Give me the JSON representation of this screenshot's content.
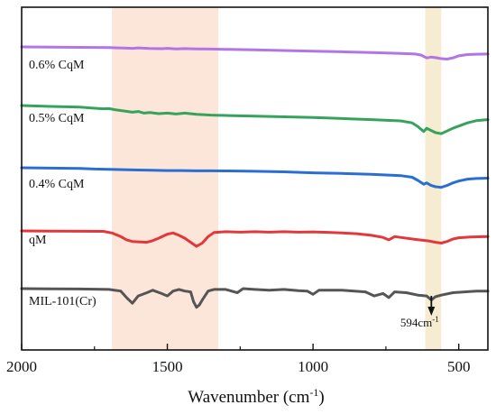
{
  "chart_data": {
    "type": "line",
    "xlabel": "Wavenumber (cm",
    "xlabel_sup": "-1",
    "xlabel_close": ")",
    "xlim": [
      2000,
      400
    ],
    "x_ticks": [
      2000,
      1500,
      1000,
      500
    ],
    "y_ticks_visible": false,
    "grid": false,
    "highlight_bands": [
      {
        "from": 1690,
        "to": 1325,
        "color": "#fbe6d9"
      },
      {
        "from": 615,
        "to": 560,
        "color": "#f5ecd2"
      }
    ],
    "annotation": {
      "text": "594cm",
      "sup": "-1",
      "x": 594
    },
    "series": [
      {
        "name": "0.6% CqM",
        "color": "#b175e6",
        "points": [
          [
            2000,
            0.0
          ],
          [
            1900,
            0.02
          ],
          [
            1800,
            0.05
          ],
          [
            1700,
            0.09
          ],
          [
            1650,
            0.14
          ],
          [
            1620,
            0.18
          ],
          [
            1600,
            0.12
          ],
          [
            1560,
            0.2
          ],
          [
            1520,
            0.22
          ],
          [
            1500,
            0.18
          ],
          [
            1470,
            0.24
          ],
          [
            1440,
            0.21
          ],
          [
            1400,
            0.24
          ],
          [
            1350,
            0.27
          ],
          [
            1300,
            0.3
          ],
          [
            1200,
            0.36
          ],
          [
            1100,
            0.44
          ],
          [
            1000,
            0.52
          ],
          [
            900,
            0.6
          ],
          [
            800,
            0.7
          ],
          [
            700,
            0.8
          ],
          [
            650,
            0.88
          ],
          [
            630,
            1.0
          ],
          [
            610,
            1.35
          ],
          [
            595,
            1.25
          ],
          [
            580,
            1.32
          ],
          [
            560,
            1.45
          ],
          [
            540,
            1.5
          ],
          [
            520,
            1.35
          ],
          [
            500,
            1.1
          ],
          [
            470,
            0.95
          ],
          [
            440,
            0.9
          ],
          [
            400,
            0.88
          ]
        ]
      },
      {
        "name": "0.5% CqM",
        "color": "#36a35c",
        "points": [
          [
            2000,
            0.0
          ],
          [
            1900,
            0.08
          ],
          [
            1800,
            0.15
          ],
          [
            1750,
            0.25
          ],
          [
            1720,
            0.3
          ],
          [
            1700,
            0.28
          ],
          [
            1680,
            0.38
          ],
          [
            1650,
            0.5
          ],
          [
            1620,
            0.62
          ],
          [
            1600,
            0.55
          ],
          [
            1580,
            0.7
          ],
          [
            1560,
            0.65
          ],
          [
            1530,
            0.75
          ],
          [
            1500,
            0.7
          ],
          [
            1470,
            0.78
          ],
          [
            1440,
            0.7
          ],
          [
            1400,
            0.82
          ],
          [
            1350,
            0.88
          ],
          [
            1300,
            0.92
          ],
          [
            1200,
            0.98
          ],
          [
            1100,
            1.04
          ],
          [
            1000,
            1.1
          ],
          [
            900,
            1.2
          ],
          [
            800,
            1.3
          ],
          [
            700,
            1.42
          ],
          [
            660,
            1.6
          ],
          [
            640,
            1.95
          ],
          [
            620,
            2.4
          ],
          [
            610,
            2.1
          ],
          [
            595,
            2.3
          ],
          [
            580,
            2.5
          ],
          [
            560,
            2.6
          ],
          [
            540,
            2.35
          ],
          [
            520,
            2.1
          ],
          [
            500,
            1.9
          ],
          [
            470,
            1.6
          ],
          [
            440,
            1.4
          ],
          [
            400,
            1.3
          ]
        ]
      },
      {
        "name": "0.4% CqM",
        "color": "#2a6ed4",
        "points": [
          [
            2000,
            0.0
          ],
          [
            1900,
            0.03
          ],
          [
            1800,
            0.05
          ],
          [
            1750,
            0.1
          ],
          [
            1700,
            0.12
          ],
          [
            1650,
            0.15
          ],
          [
            1600,
            0.18
          ],
          [
            1550,
            0.2
          ],
          [
            1500,
            0.22
          ],
          [
            1450,
            0.22
          ],
          [
            1400,
            0.24
          ],
          [
            1350,
            0.24
          ],
          [
            1300,
            0.25
          ],
          [
            1200,
            0.28
          ],
          [
            1100,
            0.32
          ],
          [
            1000,
            0.4
          ],
          [
            900,
            0.45
          ],
          [
            800,
            0.52
          ],
          [
            700,
            0.62
          ],
          [
            660,
            0.75
          ],
          [
            640,
            1.0
          ],
          [
            620,
            1.3
          ],
          [
            610,
            1.2
          ],
          [
            595,
            1.4
          ],
          [
            580,
            1.5
          ],
          [
            560,
            1.55
          ],
          [
            540,
            1.4
          ],
          [
            520,
            1.2
          ],
          [
            500,
            1.05
          ],
          [
            470,
            0.9
          ],
          [
            440,
            0.85
          ],
          [
            400,
            0.82
          ]
        ]
      },
      {
        "name": "qM",
        "color": "#e2383b",
        "points": [
          [
            2000,
            0.0
          ],
          [
            1900,
            0.02
          ],
          [
            1800,
            0.05
          ],
          [
            1720,
            0.06
          ],
          [
            1690,
            0.25
          ],
          [
            1660,
            0.7
          ],
          [
            1640,
            1.1
          ],
          [
            1620,
            1.3
          ],
          [
            1600,
            1.35
          ],
          [
            1570,
            1.4
          ],
          [
            1550,
            1.2
          ],
          [
            1530,
            0.9
          ],
          [
            1500,
            0.4
          ],
          [
            1480,
            0.25
          ],
          [
            1460,
            0.55
          ],
          [
            1440,
            0.9
          ],
          [
            1420,
            1.4
          ],
          [
            1400,
            1.9
          ],
          [
            1380,
            1.5
          ],
          [
            1360,
            0.7
          ],
          [
            1340,
            0.2
          ],
          [
            1300,
            0.1
          ],
          [
            1250,
            0.15
          ],
          [
            1200,
            0.1
          ],
          [
            1150,
            0.15
          ],
          [
            1100,
            0.1
          ],
          [
            1050,
            0.15
          ],
          [
            1000,
            0.12
          ],
          [
            950,
            0.18
          ],
          [
            900,
            0.25
          ],
          [
            850,
            0.35
          ],
          [
            800,
            0.55
          ],
          [
            760,
            0.8
          ],
          [
            740,
            1.1
          ],
          [
            720,
            0.7
          ],
          [
            700,
            0.8
          ],
          [
            650,
            1.05
          ],
          [
            600,
            1.25
          ],
          [
            580,
            1.4
          ],
          [
            560,
            1.5
          ],
          [
            540,
            1.3
          ],
          [
            520,
            1.0
          ],
          [
            500,
            0.85
          ],
          [
            460,
            0.75
          ],
          [
            400,
            0.7
          ]
        ]
      },
      {
        "name": "MIL-101(Cr)",
        "color": "#555555",
        "points": [
          [
            2000,
            0.0
          ],
          [
            1900,
            0.03
          ],
          [
            1800,
            0.05
          ],
          [
            1700,
            0.1
          ],
          [
            1660,
            0.3
          ],
          [
            1640,
            1.1
          ],
          [
            1620,
            1.8
          ],
          [
            1600,
            0.9
          ],
          [
            1570,
            0.5
          ],
          [
            1550,
            0.2
          ],
          [
            1520,
            0.6
          ],
          [
            1500,
            0.9
          ],
          [
            1480,
            0.3
          ],
          [
            1460,
            0.1
          ],
          [
            1440,
            0.3
          ],
          [
            1420,
            0.4
          ],
          [
            1410,
            1.6
          ],
          [
            1400,
            2.3
          ],
          [
            1390,
            2.0
          ],
          [
            1380,
            1.4
          ],
          [
            1360,
            0.3
          ],
          [
            1340,
            0.1
          ],
          [
            1300,
            0.1
          ],
          [
            1260,
            0.5
          ],
          [
            1240,
            0.0
          ],
          [
            1200,
            0.1
          ],
          [
            1150,
            0.2
          ],
          [
            1100,
            0.1
          ],
          [
            1050,
            0.25
          ],
          [
            1020,
            0.3
          ],
          [
            1000,
            0.7
          ],
          [
            980,
            0.2
          ],
          [
            900,
            0.2
          ],
          [
            820,
            0.4
          ],
          [
            790,
            0.9
          ],
          [
            760,
            0.6
          ],
          [
            740,
            1.1
          ],
          [
            720,
            0.4
          ],
          [
            680,
            0.5
          ],
          [
            640,
            0.8
          ],
          [
            610,
            0.9
          ],
          [
            594,
            1.4
          ],
          [
            580,
            1.0
          ],
          [
            560,
            0.8
          ],
          [
            520,
            0.5
          ],
          [
            480,
            0.4
          ],
          [
            440,
            0.3
          ],
          [
            400,
            0.3
          ]
        ]
      }
    ]
  }
}
